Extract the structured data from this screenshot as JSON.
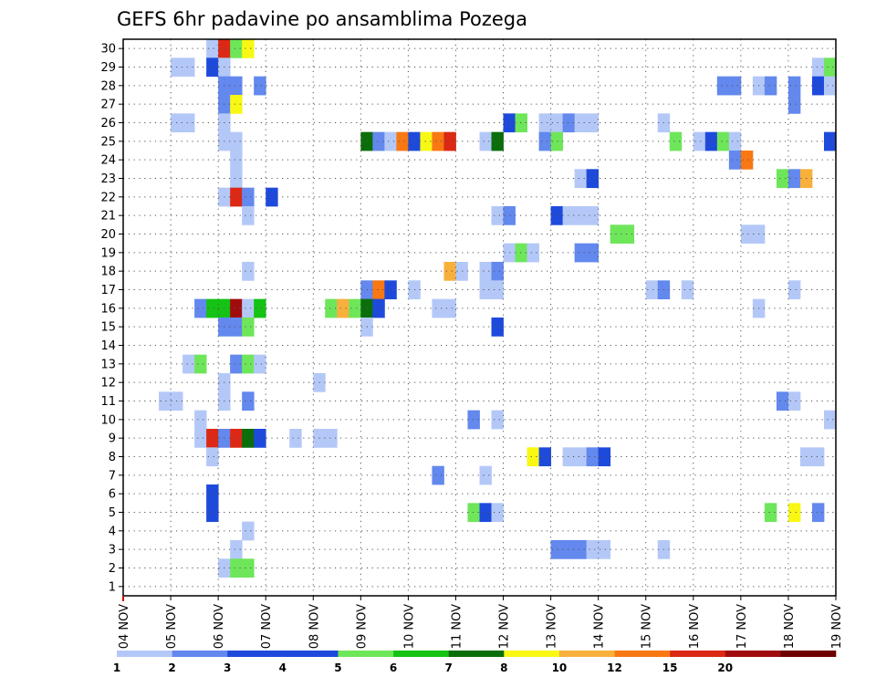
{
  "chart_data": {
    "type": "heatmap",
    "title": "GEFS 6hr padavine po ansamblima Pozega",
    "x_ticks": [
      "04 NOV",
      "05 NOV",
      "06 NOV",
      "07 NOV",
      "08 NOV",
      "09 NOV",
      "10 NOV",
      "11 NOV",
      "12 NOV",
      "13 NOV",
      "14 NOV",
      "15 NOV",
      "16 NOV",
      "17 NOV",
      "18 NOV",
      "19 NOV"
    ],
    "y_ticks": [
      "1",
      "2",
      "3",
      "4",
      "5",
      "6",
      "7",
      "8",
      "9",
      "10",
      "11",
      "12",
      "13",
      "14",
      "15",
      "16",
      "17",
      "18",
      "19",
      "20",
      "21",
      "22",
      "23",
      "24",
      "25",
      "26",
      "27",
      "28",
      "29",
      "30"
    ],
    "xlim": [
      0,
      60
    ],
    "ylim": [
      0.5,
      30.5
    ],
    "grid": true,
    "colorbar": {
      "labels": [
        "1",
        "2",
        "3",
        "4",
        "5",
        "6",
        "7",
        "8",
        "10",
        "12",
        "15",
        "20"
      ],
      "colors": [
        "#b4c8f8",
        "#6388ee",
        "#1e4adc",
        "#1e4adc",
        "#6ee65a",
        "#14c314",
        "#0a6e0a",
        "#f8f814",
        "#f8b03c",
        "#f87814",
        "#dc2814",
        "#a00c0c",
        "#6e0000"
      ]
    },
    "cells": [
      {
        "x": 8,
        "y": 30,
        "v": 1
      },
      {
        "x": 9,
        "y": 30,
        "v": 15
      },
      {
        "x": 10,
        "y": 30,
        "v": 5
      },
      {
        "x": 11,
        "y": 30,
        "v": 8
      },
      {
        "x": 5,
        "y": 29,
        "v": 1
      },
      {
        "x": 6,
        "y": 29,
        "v": 1
      },
      {
        "x": 8,
        "y": 29,
        "v": 3
      },
      {
        "x": 9,
        "y": 29,
        "v": 1
      },
      {
        "x": 59,
        "y": 29,
        "v": 1
      },
      {
        "x": 60,
        "y": 29,
        "v": 5
      },
      {
        "x": 9,
        "y": 28,
        "v": 2
      },
      {
        "x": 10,
        "y": 28,
        "v": 2
      },
      {
        "x": 12,
        "y": 28,
        "v": 2
      },
      {
        "x": 51,
        "y": 28,
        "v": 2
      },
      {
        "x": 52,
        "y": 28,
        "v": 2
      },
      {
        "x": 54,
        "y": 28,
        "v": 1
      },
      {
        "x": 55,
        "y": 28,
        "v": 2
      },
      {
        "x": 57,
        "y": 28,
        "v": 2
      },
      {
        "x": 59,
        "y": 28,
        "v": 3
      },
      {
        "x": 60,
        "y": 28,
        "v": 1
      },
      {
        "x": 9,
        "y": 27,
        "v": 2
      },
      {
        "x": 10,
        "y": 27,
        "v": 8
      },
      {
        "x": 57,
        "y": 27,
        "v": 2
      },
      {
        "x": 5,
        "y": 26,
        "v": 1
      },
      {
        "x": 6,
        "y": 26,
        "v": 1
      },
      {
        "x": 9,
        "y": 26,
        "v": 1
      },
      {
        "x": 33,
        "y": 26,
        "v": 3
      },
      {
        "x": 34,
        "y": 26,
        "v": 5
      },
      {
        "x": 36,
        "y": 26,
        "v": 1
      },
      {
        "x": 37,
        "y": 26,
        "v": 1
      },
      {
        "x": 38,
        "y": 26,
        "v": 2
      },
      {
        "x": 39,
        "y": 26,
        "v": 1
      },
      {
        "x": 40,
        "y": 26,
        "v": 1
      },
      {
        "x": 46,
        "y": 26,
        "v": 1
      },
      {
        "x": 9,
        "y": 25,
        "v": 1
      },
      {
        "x": 10,
        "y": 25,
        "v": 1
      },
      {
        "x": 21,
        "y": 25,
        "v": 7
      },
      {
        "x": 22,
        "y": 25,
        "v": 2
      },
      {
        "x": 23,
        "y": 25,
        "v": 1
      },
      {
        "x": 24,
        "y": 25,
        "v": 12
      },
      {
        "x": 25,
        "y": 25,
        "v": 3
      },
      {
        "x": 26,
        "y": 25,
        "v": 8
      },
      {
        "x": 27,
        "y": 25,
        "v": 12
      },
      {
        "x": 28,
        "y": 25,
        "v": 15
      },
      {
        "x": 31,
        "y": 25,
        "v": 1
      },
      {
        "x": 32,
        "y": 25,
        "v": 7
      },
      {
        "x": 36,
        "y": 25,
        "v": 2
      },
      {
        "x": 37,
        "y": 25,
        "v": 5
      },
      {
        "x": 47,
        "y": 25,
        "v": 5
      },
      {
        "x": 49,
        "y": 25,
        "v": 1
      },
      {
        "x": 50,
        "y": 25,
        "v": 3
      },
      {
        "x": 51,
        "y": 25,
        "v": 5
      },
      {
        "x": 52,
        "y": 25,
        "v": 1
      },
      {
        "x": 60,
        "y": 25,
        "v": 3
      },
      {
        "x": 10,
        "y": 24,
        "v": 1
      },
      {
        "x": 52,
        "y": 24,
        "v": 2
      },
      {
        "x": 53,
        "y": 24,
        "v": 12
      },
      {
        "x": 10,
        "y": 23,
        "v": 1
      },
      {
        "x": 39,
        "y": 23,
        "v": 1
      },
      {
        "x": 40,
        "y": 23,
        "v": 3
      },
      {
        "x": 56,
        "y": 23,
        "v": 5
      },
      {
        "x": 57,
        "y": 23,
        "v": 2
      },
      {
        "x": 58,
        "y": 23,
        "v": 10
      },
      {
        "x": 9,
        "y": 22,
        "v": 1
      },
      {
        "x": 10,
        "y": 22,
        "v": 15
      },
      {
        "x": 11,
        "y": 22,
        "v": 2
      },
      {
        "x": 13,
        "y": 22,
        "v": 3
      },
      {
        "x": 11,
        "y": 21,
        "v": 1
      },
      {
        "x": 32,
        "y": 21,
        "v": 1
      },
      {
        "x": 33,
        "y": 21,
        "v": 2
      },
      {
        "x": 37,
        "y": 21,
        "v": 3
      },
      {
        "x": 38,
        "y": 21,
        "v": 1
      },
      {
        "x": 39,
        "y": 21,
        "v": 1
      },
      {
        "x": 40,
        "y": 21,
        "v": 1
      },
      {
        "x": 42,
        "y": 20,
        "v": 5
      },
      {
        "x": 43,
        "y": 20,
        "v": 5
      },
      {
        "x": 53,
        "y": 20,
        "v": 1
      },
      {
        "x": 54,
        "y": 20,
        "v": 1
      },
      {
        "x": 33,
        "y": 19,
        "v": 1
      },
      {
        "x": 34,
        "y": 19,
        "v": 5
      },
      {
        "x": 35,
        "y": 19,
        "v": 1
      },
      {
        "x": 39,
        "y": 19,
        "v": 2
      },
      {
        "x": 40,
        "y": 19,
        "v": 2
      },
      {
        "x": 11,
        "y": 18,
        "v": 1
      },
      {
        "x": 28,
        "y": 18,
        "v": 10
      },
      {
        "x": 29,
        "y": 18,
        "v": 1
      },
      {
        "x": 31,
        "y": 18,
        "v": 1
      },
      {
        "x": 32,
        "y": 18,
        "v": 2
      },
      {
        "x": 21,
        "y": 17,
        "v": 2
      },
      {
        "x": 22,
        "y": 17,
        "v": 12
      },
      {
        "x": 23,
        "y": 17,
        "v": 3
      },
      {
        "x": 25,
        "y": 17,
        "v": 1
      },
      {
        "x": 31,
        "y": 17,
        "v": 1
      },
      {
        "x": 32,
        "y": 17,
        "v": 1
      },
      {
        "x": 45,
        "y": 17,
        "v": 1
      },
      {
        "x": 46,
        "y": 17,
        "v": 2
      },
      {
        "x": 48,
        "y": 17,
        "v": 1
      },
      {
        "x": 57,
        "y": 17,
        "v": 1
      },
      {
        "x": 7,
        "y": 16,
        "v": 2
      },
      {
        "x": 8,
        "y": 16,
        "v": 6
      },
      {
        "x": 9,
        "y": 16,
        "v": 6
      },
      {
        "x": 10,
        "y": 16,
        "v": 20
      },
      {
        "x": 11,
        "y": 16,
        "v": 1
      },
      {
        "x": 12,
        "y": 16,
        "v": 6
      },
      {
        "x": 18,
        "y": 16,
        "v": 5
      },
      {
        "x": 19,
        "y": 16,
        "v": 10
      },
      {
        "x": 20,
        "y": 16,
        "v": 5
      },
      {
        "x": 21,
        "y": 16,
        "v": 7
      },
      {
        "x": 22,
        "y": 16,
        "v": 3
      },
      {
        "x": 27,
        "y": 16,
        "v": 1
      },
      {
        "x": 28,
        "y": 16,
        "v": 1
      },
      {
        "x": 54,
        "y": 16,
        "v": 1
      },
      {
        "x": 9,
        "y": 15,
        "v": 2
      },
      {
        "x": 10,
        "y": 15,
        "v": 2
      },
      {
        "x": 11,
        "y": 15,
        "v": 5
      },
      {
        "x": 21,
        "y": 15,
        "v": 1
      },
      {
        "x": 32,
        "y": 15,
        "v": 3
      },
      {
        "x": 6,
        "y": 13,
        "v": 1
      },
      {
        "x": 7,
        "y": 13,
        "v": 5
      },
      {
        "x": 10,
        "y": 13,
        "v": 2
      },
      {
        "x": 11,
        "y": 13,
        "v": 5
      },
      {
        "x": 12,
        "y": 13,
        "v": 1
      },
      {
        "x": 9,
        "y": 12,
        "v": 1
      },
      {
        "x": 17,
        "y": 12,
        "v": 1
      },
      {
        "x": 4,
        "y": 11,
        "v": 1
      },
      {
        "x": 5,
        "y": 11,
        "v": 1
      },
      {
        "x": 9,
        "y": 11,
        "v": 1
      },
      {
        "x": 11,
        "y": 11,
        "v": 2
      },
      {
        "x": 56,
        "y": 11,
        "v": 2
      },
      {
        "x": 57,
        "y": 11,
        "v": 1
      },
      {
        "x": 7,
        "y": 10,
        "v": 1
      },
      {
        "x": 30,
        "y": 10,
        "v": 2
      },
      {
        "x": 32,
        "y": 10,
        "v": 1
      },
      {
        "x": 60,
        "y": 10,
        "v": 1
      },
      {
        "x": 7,
        "y": 9,
        "v": 1
      },
      {
        "x": 8,
        "y": 9,
        "v": 15
      },
      {
        "x": 9,
        "y": 9,
        "v": 2
      },
      {
        "x": 10,
        "y": 9,
        "v": 15
      },
      {
        "x": 11,
        "y": 9,
        "v": 7
      },
      {
        "x": 12,
        "y": 9,
        "v": 3
      },
      {
        "x": 15,
        "y": 9,
        "v": 1
      },
      {
        "x": 17,
        "y": 9,
        "v": 1
      },
      {
        "x": 18,
        "y": 9,
        "v": 1
      },
      {
        "x": 8,
        "y": 8,
        "v": 1
      },
      {
        "x": 35,
        "y": 8,
        "v": 8
      },
      {
        "x": 36,
        "y": 8,
        "v": 3
      },
      {
        "x": 38,
        "y": 8,
        "v": 1
      },
      {
        "x": 39,
        "y": 8,
        "v": 1
      },
      {
        "x": 40,
        "y": 8,
        "v": 2
      },
      {
        "x": 41,
        "y": 8,
        "v": 3
      },
      {
        "x": 58,
        "y": 8,
        "v": 1
      },
      {
        "x": 59,
        "y": 8,
        "v": 1
      },
      {
        "x": 27,
        "y": 7,
        "v": 2
      },
      {
        "x": 31,
        "y": 7,
        "v": 1
      },
      {
        "x": 8,
        "y": 6,
        "v": 3
      },
      {
        "x": 8,
        "y": 5,
        "v": 3
      },
      {
        "x": 30,
        "y": 5,
        "v": 5
      },
      {
        "x": 31,
        "y": 5,
        "v": 3
      },
      {
        "x": 32,
        "y": 5,
        "v": 1
      },
      {
        "x": 55,
        "y": 5,
        "v": 5
      },
      {
        "x": 57,
        "y": 5,
        "v": 8
      },
      {
        "x": 59,
        "y": 5,
        "v": 2
      },
      {
        "x": 11,
        "y": 4,
        "v": 1
      },
      {
        "x": 10,
        "y": 3,
        "v": 1
      },
      {
        "x": 37,
        "y": 3,
        "v": 2
      },
      {
        "x": 38,
        "y": 3,
        "v": 2
      },
      {
        "x": 39,
        "y": 3,
        "v": 2
      },
      {
        "x": 40,
        "y": 3,
        "v": 1
      },
      {
        "x": 41,
        "y": 3,
        "v": 1
      },
      {
        "x": 46,
        "y": 3,
        "v": 1
      },
      {
        "x": 9,
        "y": 2,
        "v": 1
      },
      {
        "x": 10,
        "y": 2,
        "v": 5
      },
      {
        "x": 11,
        "y": 2,
        "v": 5
      }
    ]
  }
}
